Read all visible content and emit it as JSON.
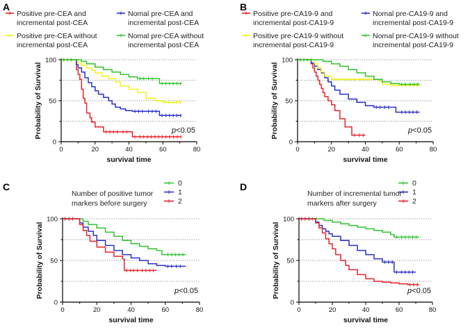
{
  "chart_data": [
    {
      "panel": "A",
      "type": "line",
      "xlabel": "survival time",
      "ylabel": "Probability of Survival",
      "xlim": [
        0,
        80
      ],
      "ylim": [
        0,
        100
      ],
      "xticks": [
        "0",
        "20",
        "40",
        "60",
        "80"
      ],
      "yticks": [
        "0",
        "50",
        "100"
      ],
      "annotation": {
        "prefix": "p",
        "text": "<0.05"
      },
      "legend": [
        {
          "line1": "Positive pre-CEA and",
          "line2": "incremental post-CEA",
          "color": "#e8232a"
        },
        {
          "line1": "Nomal pre-CEA and",
          "line2": "incremental post-CEA",
          "color": "#2a2fc9"
        },
        {
          "line1": "Positive pre-CEA without",
          "line2": "incremental post-CEA",
          "color": "#f2f21a"
        },
        {
          "line1": "Nomal pre-CEA without",
          "line2": "incremental post-CEA",
          "color": "#2fc42f"
        }
      ],
      "series": [
        {
          "color": "#e8232a",
          "x": [
            0,
            7,
            9,
            10,
            11,
            12,
            13,
            14,
            15,
            17,
            18,
            20,
            25,
            35,
            40,
            42,
            45,
            71
          ],
          "y": [
            100,
            100,
            88,
            82,
            76,
            64,
            53,
            47,
            35,
            29,
            24,
            18,
            12,
            12,
            12,
            6,
            6,
            6
          ]
        },
        {
          "color": "#2a2fc9",
          "x": [
            0,
            7,
            9,
            10,
            12,
            14,
            16,
            18,
            20,
            22,
            25,
            28,
            30,
            32,
            35,
            38,
            42,
            50,
            57,
            58,
            71
          ],
          "y": [
            100,
            100,
            94,
            90,
            85,
            78,
            72,
            67,
            62,
            58,
            54,
            50,
            46,
            42,
            40,
            38,
            37,
            37,
            37,
            32,
            32
          ]
        },
        {
          "color": "#f2f21a",
          "x": [
            0,
            7,
            10,
            12,
            15,
            18,
            20,
            24,
            28,
            32,
            35,
            40,
            45,
            50,
            55,
            58,
            60,
            71
          ],
          "y": [
            100,
            100,
            96,
            93,
            90,
            87,
            84,
            80,
            77,
            73,
            68,
            64,
            60,
            53,
            50,
            50,
            48,
            48
          ]
        },
        {
          "color": "#2fc42f",
          "x": [
            0,
            8,
            12,
            15,
            20,
            25,
            30,
            35,
            40,
            45,
            50,
            55,
            57,
            58,
            71
          ],
          "y": [
            100,
            100,
            98,
            95,
            91,
            88,
            85,
            82,
            79,
            77,
            77,
            77,
            77,
            71,
            71
          ]
        }
      ]
    },
    {
      "panel": "B",
      "type": "line",
      "xlabel": "survival time",
      "ylabel": "Probability of Survival",
      "xlim": [
        0,
        80
      ],
      "ylim": [
        0,
        100
      ],
      "xticks": [
        "0",
        "20",
        "40",
        "60",
        "80"
      ],
      "yticks": [
        "0",
        "50",
        "100"
      ],
      "annotation": {
        "prefix": "p",
        "text": "<0.05"
      },
      "legend": [
        {
          "line1": "Positive pre-CA19-9 and",
          "line2": "incremental post-CA19-9",
          "color": "#e8232a"
        },
        {
          "line1": "Nomal pre-CA19-9 and",
          "line2": "incremental post-CA19-9",
          "color": "#2a2fc9"
        },
        {
          "line1": "Positive pre-CA19-9 without",
          "line2": "incremental post-CA19-9",
          "color": "#f2f21a"
        },
        {
          "line1": "Nomal pre-CA19-9 without",
          "line2": "incremental post-CA19-9",
          "color": "#2fc42f"
        }
      ],
      "series": [
        {
          "color": "#e8232a",
          "x": [
            0,
            6,
            8,
            9,
            10,
            11,
            12,
            13,
            14,
            15,
            16,
            18,
            20,
            22,
            25,
            28,
            32,
            35,
            40
          ],
          "y": [
            100,
            100,
            95,
            90,
            85,
            80,
            75,
            70,
            65,
            60,
            55,
            50,
            45,
            38,
            28,
            18,
            8,
            8,
            8
          ]
        },
        {
          "color": "#2a2fc9",
          "x": [
            0,
            6,
            8,
            10,
            12,
            14,
            16,
            18,
            20,
            22,
            25,
            30,
            35,
            40,
            45,
            50,
            55,
            57,
            58,
            60,
            72
          ],
          "y": [
            100,
            100,
            96,
            92,
            88,
            84,
            78,
            73,
            68,
            63,
            58,
            52,
            48,
            44,
            42,
            42,
            42,
            42,
            36,
            36,
            36
          ]
        },
        {
          "color": "#f2f21a",
          "x": [
            0,
            8,
            10,
            12,
            14,
            16,
            20,
            25,
            30,
            35,
            40,
            45,
            48,
            50,
            55,
            60,
            72
          ],
          "y": [
            100,
            100,
            95,
            90,
            85,
            80,
            76,
            76,
            76,
            76,
            76,
            76,
            74,
            70,
            69,
            69,
            69
          ]
        },
        {
          "color": "#2fc42f",
          "x": [
            0,
            10,
            15,
            20,
            25,
            30,
            35,
            40,
            45,
            50,
            55,
            60,
            65,
            72
          ],
          "y": [
            100,
            100,
            98,
            95,
            92,
            88,
            84,
            80,
            76,
            73,
            71,
            70,
            70,
            70
          ]
        }
      ]
    },
    {
      "panel": "C",
      "type": "line",
      "title": "Number of positive tumor markers before surgery",
      "title_line1": "Number of positive tumor",
      "title_line2": "markers before surgery",
      "xlabel": "survival time",
      "ylabel": "Probability of Survival",
      "xlim": [
        0,
        80
      ],
      "ylim": [
        0,
        100
      ],
      "xticks": [
        "0",
        "20",
        "40",
        "60",
        "80"
      ],
      "yticks": [
        "0",
        "50",
        "100"
      ],
      "annotation": {
        "prefix": "p",
        "text": "<0.05"
      },
      "legend": [
        {
          "label": "0",
          "color": "#2fc42f"
        },
        {
          "label": "1",
          "color": "#2a2fc9"
        },
        {
          "label": "2",
          "color": "#e8232a"
        }
      ],
      "series": [
        {
          "name": "0",
          "color": "#2fc42f",
          "x": [
            0,
            8,
            12,
            15,
            20,
            25,
            30,
            35,
            40,
            45,
            50,
            55,
            58,
            60,
            72
          ],
          "y": [
            100,
            100,
            97,
            93,
            89,
            84,
            79,
            74,
            70,
            67,
            64,
            62,
            57,
            57,
            57
          ]
        },
        {
          "name": "1",
          "color": "#2a2fc9",
          "x": [
            0,
            7,
            10,
            12,
            15,
            18,
            20,
            25,
            30,
            35,
            40,
            45,
            50,
            55,
            60,
            65,
            70,
            72
          ],
          "y": [
            100,
            100,
            95,
            90,
            85,
            80,
            74,
            68,
            62,
            57,
            53,
            50,
            46,
            44,
            43,
            43,
            43,
            43
          ]
        },
        {
          "name": "2",
          "color": "#e8232a",
          "x": [
            0,
            8,
            10,
            12,
            14,
            16,
            20,
            25,
            30,
            35,
            36,
            40,
            45,
            55
          ],
          "y": [
            100,
            100,
            93,
            86,
            80,
            73,
            66,
            60,
            55,
            52,
            38,
            38,
            38,
            38
          ]
        }
      ]
    },
    {
      "panel": "D",
      "type": "line",
      "title": "Number of incremental tumor markers after surgery",
      "title_line1": "Number of incremental tumor",
      "title_line2": "markers after surgery",
      "xlabel": "survival time",
      "ylabel": "Probability of Survival",
      "xlim": [
        0,
        80
      ],
      "ylim": [
        0,
        100
      ],
      "xticks": [
        "0",
        "20",
        "40",
        "60",
        "80"
      ],
      "yticks": [
        "0",
        "50",
        "100"
      ],
      "annotation": {
        "prefix": "p",
        "text": "<0.05"
      },
      "legend": [
        {
          "label": "0",
          "color": "#2fc42f"
        },
        {
          "label": "1",
          "color": "#2a2fc9"
        },
        {
          "label": "2",
          "color": "#e8232a"
        }
      ],
      "series": [
        {
          "name": "0",
          "color": "#2fc42f",
          "x": [
            0,
            12,
            15,
            20,
            25,
            30,
            35,
            40,
            45,
            50,
            55,
            57,
            60,
            72
          ],
          "y": [
            100,
            100,
            98,
            96,
            94,
            92,
            90,
            88,
            86,
            84,
            81,
            78,
            78,
            78
          ]
        },
        {
          "name": "1",
          "color": "#2a2fc9",
          "x": [
            0,
            8,
            10,
            12,
            14,
            16,
            18,
            20,
            25,
            30,
            35,
            40,
            45,
            50,
            56,
            57,
            60,
            70
          ],
          "y": [
            100,
            100,
            96,
            92,
            88,
            85,
            82,
            79,
            74,
            68,
            62,
            57,
            52,
            48,
            48,
            36,
            36,
            36
          ]
        },
        {
          "name": "2",
          "color": "#e8232a",
          "x": [
            0,
            8,
            10,
            12,
            14,
            16,
            18,
            20,
            22,
            25,
            28,
            30,
            35,
            40,
            45,
            50,
            55,
            60,
            65,
            72
          ],
          "y": [
            100,
            100,
            95,
            89,
            83,
            76,
            70,
            64,
            57,
            50,
            44,
            39,
            33,
            28,
            25,
            24,
            23,
            22,
            21,
            21
          ]
        }
      ]
    }
  ]
}
